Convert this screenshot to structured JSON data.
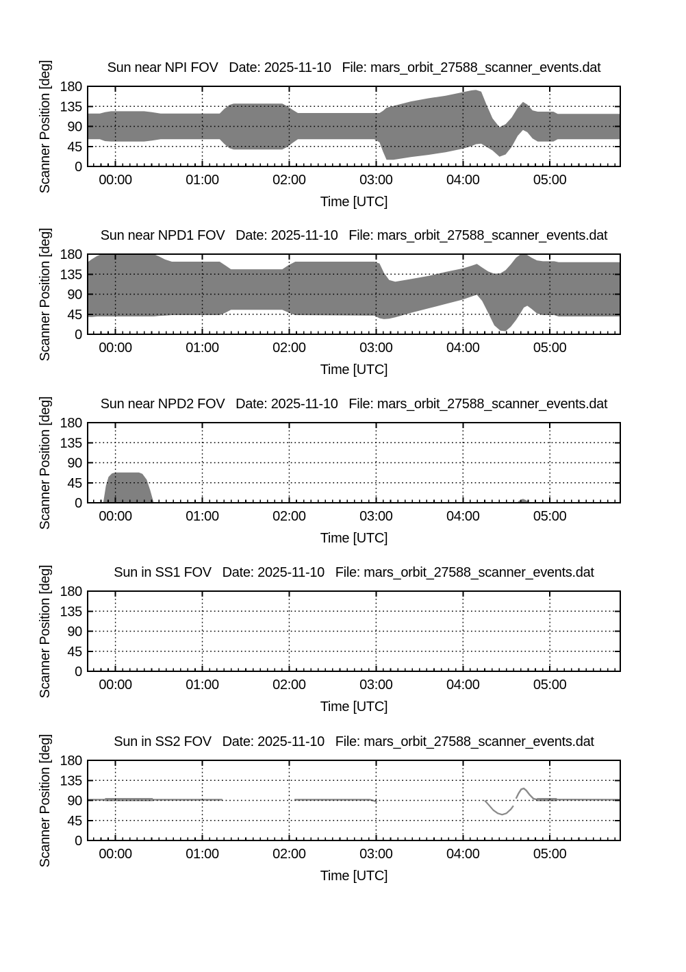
{
  "page": {
    "background": "#ffffff",
    "text_color": "#000000"
  },
  "axes": {
    "x_range_hours": [
      -0.32,
      5.81
    ],
    "ylim": [
      0,
      180
    ],
    "yticks": [
      0,
      45,
      90,
      135,
      180
    ],
    "ytick_labels": [
      "0",
      "45",
      "90",
      "135",
      "180"
    ],
    "xtick_hours": [
      0,
      1,
      2,
      3,
      4,
      5
    ],
    "xtick_labels": [
      "00:00",
      "01:00",
      "02:00",
      "03:00",
      "04:00",
      "05:00"
    ],
    "x_minor_tick_minutes": 5,
    "grid_style": "dotted",
    "grid_y_values": [
      45,
      90,
      135
    ],
    "band_fill_color": "#808080",
    "line_color": "#8a8a8a",
    "frame_color": "#000000",
    "legend": "none"
  },
  "chart_data": [
    {
      "type": "area",
      "title": "Sun near NPI FOV   Date: 2025-11-10   File: mars_orbit_27588_scanner_events.dat",
      "xlabel": "Time [UTC]",
      "ylabel": "Scanner Position [deg]",
      "bands": [
        {
          "name": "scanner-position-band",
          "points_t_lo_hi": [
            [
              -0.32,
              61,
              119
            ],
            [
              -0.18,
              61,
              119
            ],
            [
              -0.12,
              57,
              122
            ],
            [
              -0.05,
              56,
              124
            ],
            [
              0.33,
              56,
              124
            ],
            [
              0.42,
              58,
              122
            ],
            [
              0.52,
              61,
              119
            ],
            [
              1.2,
              61,
              119
            ],
            [
              1.25,
              51,
              129
            ],
            [
              1.31,
              41,
              138
            ],
            [
              1.36,
              38,
              141
            ],
            [
              1.92,
              38,
              141
            ],
            [
              1.98,
              44,
              135
            ],
            [
              2.04,
              53,
              127
            ],
            [
              2.1,
              61,
              120
            ],
            [
              2.98,
              61,
              120
            ],
            [
              3.04,
              54,
              120
            ],
            [
              3.08,
              33,
              125
            ],
            [
              3.12,
              15,
              132
            ],
            [
              3.2,
              15,
              136
            ],
            [
              3.4,
              21,
              146
            ],
            [
              3.6,
              26,
              153
            ],
            [
              3.8,
              32,
              159
            ],
            [
              4.0,
              40,
              167
            ],
            [
              4.1,
              46,
              171
            ],
            [
              4.15,
              50,
              172
            ],
            [
              4.21,
              51,
              168
            ],
            [
              4.27,
              44,
              139
            ],
            [
              4.34,
              36,
              108
            ],
            [
              4.42,
              22,
              88
            ],
            [
              4.49,
              27,
              95
            ],
            [
              4.56,
              44,
              110
            ],
            [
              4.63,
              69,
              132
            ],
            [
              4.69,
              82,
              145
            ],
            [
              4.74,
              77,
              139
            ],
            [
              4.8,
              63,
              126
            ],
            [
              4.86,
              56,
              123
            ],
            [
              5.04,
              56,
              123
            ],
            [
              5.09,
              61,
              118
            ],
            [
              5.81,
              61,
              118
            ]
          ]
        }
      ],
      "lines": []
    },
    {
      "type": "area",
      "title": "Sun near NPD1 FOV   Date: 2025-11-10   File: mars_orbit_27588_scanner_events.dat",
      "xlabel": "Time [UTC]",
      "ylabel": "Scanner Position [deg]",
      "bands": [
        {
          "name": "scanner-position-band",
          "points_t_lo_hi": [
            [
              -0.32,
              39,
              162
            ],
            [
              -0.27,
              39,
              169
            ],
            [
              -0.21,
              40,
              176
            ],
            [
              -0.16,
              40,
              180
            ],
            [
              0.44,
              40,
              180
            ],
            [
              0.5,
              41,
              175
            ],
            [
              0.57,
              42,
              168
            ],
            [
              0.65,
              43,
              163
            ],
            [
              1.2,
              43,
              163
            ],
            [
              1.27,
              49,
              154
            ],
            [
              1.33,
              55,
              146
            ],
            [
              1.92,
              55,
              146
            ],
            [
              1.99,
              49,
              155
            ],
            [
              2.07,
              43,
              163
            ],
            [
              2.98,
              42,
              163
            ],
            [
              3.04,
              36,
              159
            ],
            [
              3.09,
              34,
              138
            ],
            [
              3.15,
              35,
              122
            ],
            [
              3.22,
              38,
              118
            ],
            [
              3.4,
              48,
              124
            ],
            [
              3.6,
              58,
              131
            ],
            [
              3.8,
              68,
              140
            ],
            [
              4.0,
              78,
              148
            ],
            [
              4.1,
              85,
              154
            ],
            [
              4.16,
              89,
              158
            ],
            [
              4.22,
              75,
              150
            ],
            [
              4.29,
              48,
              141
            ],
            [
              4.36,
              20,
              136
            ],
            [
              4.43,
              8,
              137
            ],
            [
              4.49,
              7,
              144
            ],
            [
              4.55,
              17,
              157
            ],
            [
              4.61,
              32,
              172
            ],
            [
              4.66,
              47,
              179
            ],
            [
              4.7,
              60,
              180
            ],
            [
              4.74,
              64,
              178
            ],
            [
              4.79,
              57,
              172
            ],
            [
              4.85,
              47,
              166
            ],
            [
              4.92,
              43,
              164
            ],
            [
              5.05,
              43,
              164
            ],
            [
              5.1,
              40,
              162
            ],
            [
              5.81,
              40,
              162
            ]
          ]
        }
      ],
      "lines": []
    },
    {
      "type": "area",
      "title": "Sun near NPD2 FOV   Date: 2025-11-10   File: mars_orbit_27588_scanner_events.dat",
      "xlabel": "Time [UTC]",
      "ylabel": "Scanner Position [deg]",
      "bands": [
        {
          "name": "scanner-position-band",
          "points_t_lo_hi": [
            [
              -0.14,
              0,
              0
            ],
            [
              -0.11,
              0,
              38
            ],
            [
              -0.08,
              0,
              58
            ],
            [
              -0.04,
              0,
              66
            ],
            [
              0.0,
              0,
              68
            ],
            [
              0.27,
              0,
              68
            ],
            [
              0.31,
              0,
              65
            ],
            [
              0.36,
              0,
              52
            ],
            [
              0.4,
              0,
              28
            ],
            [
              0.44,
              0,
              0
            ]
          ]
        },
        {
          "name": "scanner-position-band-small",
          "points_t_lo_hi": [
            [
              4.62,
              0,
              0
            ],
            [
              4.655,
              0,
              6
            ],
            [
              4.69,
              0,
              9
            ],
            [
              4.725,
              0,
              6
            ],
            [
              4.76,
              0,
              0
            ]
          ]
        }
      ],
      "lines": []
    },
    {
      "type": "area",
      "title": "Sun in SS1 FOV   Date: 2025-11-10   File: mars_orbit_27588_scanner_events.dat",
      "xlabel": "Time [UTC]",
      "ylabel": "Scanner Position [deg]",
      "bands": [],
      "lines": []
    },
    {
      "type": "line",
      "title": "Sun in SS2 FOV   Date: 2025-11-10   File: mars_orbit_27588_scanner_events.dat",
      "xlabel": "Time [UTC]",
      "ylabel": "Scanner Position [deg]",
      "bands": [],
      "lines": [
        {
          "name": "scanner-position-trace",
          "width": 2.4,
          "points_t_deg": [
            [
              -0.32,
              91.5
            ],
            [
              1.23,
              91.5
            ]
          ]
        },
        {
          "name": "scanner-position-trace-thick",
          "width": 4.5,
          "points_t_deg": [
            [
              -0.12,
              91.8
            ],
            [
              0.43,
              91.8
            ]
          ]
        },
        {
          "name": "scanner-position-trace",
          "width": 2.4,
          "points_t_deg": [
            [
              2.06,
              91.5
            ],
            [
              2.93,
              91.5
            ],
            [
              2.97,
              89.5
            ],
            [
              3.01,
              86.5
            ]
          ]
        },
        {
          "name": "scanner-position-trace",
          "width": 2.2,
          "points_t_deg": [
            [
              4.25,
              90
            ],
            [
              4.3,
              79
            ],
            [
              4.35,
              68
            ],
            [
              4.4,
              61
            ],
            [
              4.45,
              58
            ],
            [
              4.5,
              61
            ],
            [
              4.55,
              70
            ],
            [
              4.58,
              78
            ]
          ]
        },
        {
          "name": "scanner-position-trace",
          "width": 2.4,
          "points_t_deg": [
            [
              4.61,
              94
            ],
            [
              4.64,
              106
            ],
            [
              4.67,
              115
            ],
            [
              4.7,
              117
            ],
            [
              4.73,
              112
            ],
            [
              4.77,
              102
            ],
            [
              4.81,
              94
            ],
            [
              4.85,
              92
            ],
            [
              5.81,
              91.5
            ]
          ]
        },
        {
          "name": "scanner-position-trace-thick",
          "width": 4.5,
          "points_t_deg": [
            [
              4.85,
              92
            ],
            [
              5.08,
              92
            ]
          ]
        }
      ]
    }
  ]
}
